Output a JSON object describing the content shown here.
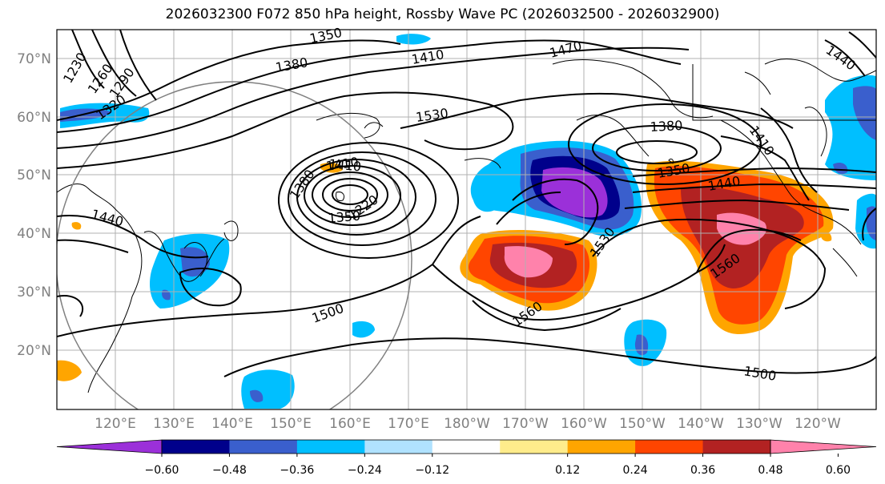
{
  "title": "2026032300 F072 850 hPa height, Rossby Wave PC (2026032500 - 2026032900)",
  "lat_labels": [
    "70°N",
    "60°N",
    "50°N",
    "40°N",
    "30°N",
    "20°N"
  ],
  "lon_labels": [
    "120°E",
    "130°E",
    "140°E",
    "150°E",
    "160°E",
    "170°E",
    "180°W",
    "170°W",
    "160°W",
    "150°W",
    "140°W",
    "130°W",
    "120°W"
  ],
  "contour_labels": [
    "1230",
    "1260",
    "1290",
    "1320",
    "1350",
    "1380",
    "1410",
    "1470",
    "1440",
    "1530",
    "1380",
    "1410",
    "1350",
    "1440",
    "1410",
    "1440",
    "1380",
    "1410",
    "1350",
    "1220",
    "1530",
    "1560",
    "1560",
    "1500",
    "1500"
  ],
  "colorbar": {
    "ticks": [
      "−0.60",
      "−0.48",
      "−0.36",
      "−0.24",
      "−0.12",
      "0.12",
      "0.24",
      "0.36",
      "0.48",
      "0.60"
    ],
    "colors": [
      "#9b30d9",
      "#00008b",
      "#3a5fcd",
      "#00bfff",
      "#b0e2ff",
      "#ffffff",
      "#ffec8b",
      "#ffa500",
      "#ff4500",
      "#b22222",
      "#ff82ab"
    ]
  },
  "colors": {
    "contour": "#000000",
    "grid": "#b0b0b0",
    "coast": "#000000",
    "circle": "#808080"
  }
}
